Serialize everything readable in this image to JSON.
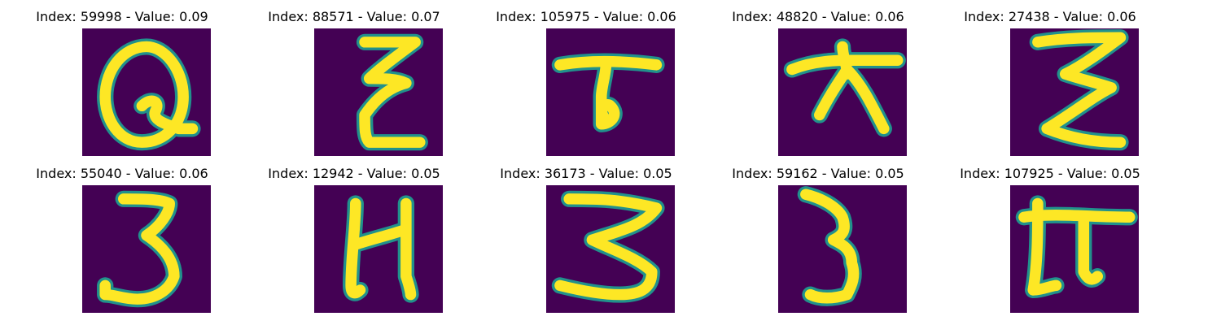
{
  "chart_data": {
    "type": "image-grid",
    "rows": 2,
    "columns": 5,
    "colormap": "viridis",
    "background_color": "#440154",
    "foreground_color": "#fde725",
    "edge_color": "#21918c",
    "panels": [
      {
        "index": 59998,
        "value": 0.09,
        "title": "Index: 59998 - Value: 0.09",
        "glyph": "Q"
      },
      {
        "index": 88571,
        "value": 0.07,
        "title": "Index: 88571 - Value: 0.07",
        "glyph": "Ξ"
      },
      {
        "index": 105975,
        "value": 0.06,
        "title": "Index: 105975 - Value: 0.06",
        "glyph": "T"
      },
      {
        "index": 48820,
        "value": 0.06,
        "title": "Index: 48820 - Value: 0.06",
        "glyph": "ㅈ"
      },
      {
        "index": 27438,
        "value": 0.06,
        "title": "Index: 27438 - Value: 0.06",
        "glyph": "Σ"
      },
      {
        "index": 55040,
        "value": 0.06,
        "title": "Index: 55040 - Value: 0.06",
        "glyph": "3"
      },
      {
        "index": 12942,
        "value": 0.05,
        "title": "Index: 12942 - Value: 0.05",
        "glyph": "И"
      },
      {
        "index": 36173,
        "value": 0.05,
        "title": "Index: 36173 - Value: 0.05",
        "glyph": "ζ"
      },
      {
        "index": 59162,
        "value": 0.05,
        "title": "Index: 59162 - Value: 0.05",
        "glyph": "3"
      },
      {
        "index": 107925,
        "value": 0.05,
        "title": "Index: 107925 - Value: 0.05",
        "glyph": "π"
      }
    ]
  }
}
